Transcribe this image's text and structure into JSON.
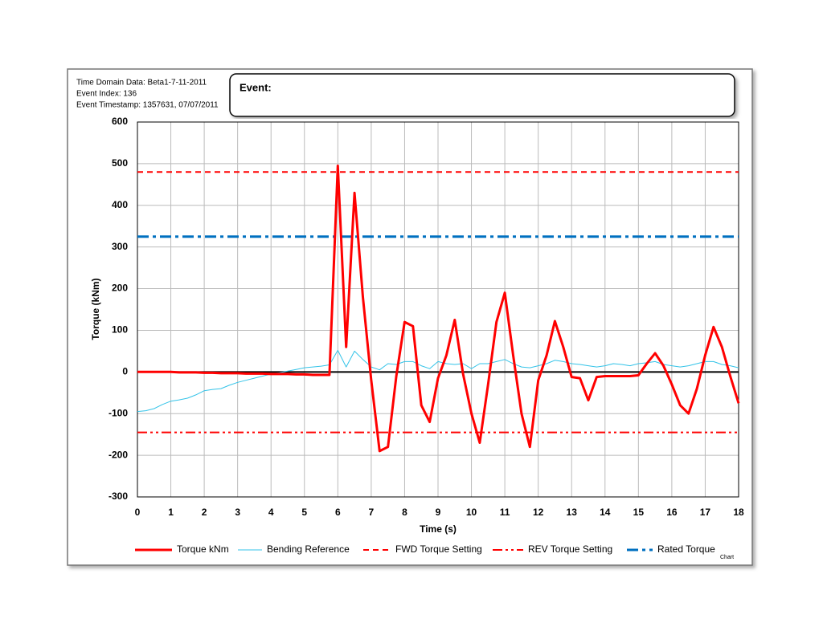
{
  "header": {
    "lines": [
      "Time Domain Data: Beta1-7-11-2011",
      "Event Index: 136",
      "Event Timestamp: 1357631, 07/07/2011"
    ],
    "event_label": "Event:",
    "corner_label": "Chart"
  },
  "chart_data": {
    "type": "line",
    "x_label": "Time (s)",
    "y_label": "Torque (kNm)",
    "x": [
      0,
      0.25,
      0.5,
      0.75,
      1,
      1.25,
      1.5,
      1.75,
      2,
      2.25,
      2.5,
      2.75,
      3,
      3.25,
      3.5,
      3.75,
      4,
      4.25,
      4.5,
      4.75,
      5,
      5.25,
      5.5,
      5.75,
      6,
      6.25,
      6.5,
      6.75,
      7,
      7.25,
      7.5,
      7.75,
      8,
      8.25,
      8.5,
      8.75,
      9,
      9.25,
      9.5,
      9.75,
      10,
      10.25,
      10.5,
      10.75,
      11,
      11.25,
      11.5,
      11.75,
      12,
      12.25,
      12.5,
      12.75,
      13,
      13.25,
      13.5,
      13.75,
      14,
      14.25,
      14.5,
      14.75,
      15,
      15.25,
      15.5,
      15.75,
      16,
      16.25,
      16.5,
      16.75,
      17,
      17.25,
      17.5,
      17.75,
      18
    ],
    "series": [
      {
        "name": "Torque kNm",
        "color": "#ff0000",
        "width": 3,
        "values": [
          0,
          0,
          0,
          0,
          0,
          -1,
          -1,
          -1,
          -2,
          -2,
          -3,
          -3,
          -3,
          -4,
          -4,
          -4,
          -5,
          -5,
          -5,
          -6,
          -6,
          -7,
          -7,
          -7,
          495,
          60,
          430,
          180,
          -20,
          -190,
          -180,
          -10,
          120,
          110,
          -80,
          -120,
          -15,
          40,
          125,
          -5,
          -100,
          -170,
          -30,
          120,
          190,
          40,
          -100,
          -180,
          -20,
          40,
          122,
          60,
          -12,
          -15,
          -68,
          -12,
          -10,
          -10,
          -10,
          -10,
          -8,
          20,
          45,
          15,
          -30,
          -80,
          -100,
          -40,
          40,
          108,
          60,
          -10,
          -75
        ]
      },
      {
        "name": "Bending Reference",
        "color": "#33c3e8",
        "width": 1,
        "values": [
          -95,
          -93,
          -88,
          -78,
          -70,
          -67,
          -63,
          -55,
          -45,
          -42,
          -40,
          -32,
          -25,
          -20,
          -15,
          -10,
          -5,
          -2,
          2,
          6,
          10,
          12,
          14,
          17,
          52,
          12,
          50,
          30,
          12,
          5,
          20,
          18,
          25,
          25,
          15,
          8,
          25,
          20,
          18,
          20,
          8,
          20,
          20,
          25,
          30,
          20,
          12,
          10,
          15,
          20,
          28,
          25,
          20,
          18,
          15,
          12,
          15,
          20,
          18,
          15,
          20,
          22,
          25,
          18,
          15,
          12,
          15,
          20,
          25,
          25,
          18,
          15,
          10
        ]
      }
    ],
    "reference_lines": [
      {
        "name": "FWD Torque Setting",
        "color": "#ff0000",
        "value": 480,
        "dash": "7,5",
        "width": 2
      },
      {
        "name": "REV Torque Setting",
        "color": "#ff0000",
        "value": -145,
        "dash": "12,4,3,4,3,4",
        "width": 2
      },
      {
        "name": "Rated Torque",
        "color": "#0070c0",
        "value": 325,
        "dash": "14,5,4,5",
        "width": 3
      }
    ],
    "xlim": [
      0,
      18
    ],
    "xticks": [
      0,
      1,
      2,
      3,
      4,
      5,
      6,
      7,
      8,
      9,
      10,
      11,
      12,
      13,
      14,
      15,
      16,
      17,
      18
    ],
    "ylim": [
      -300,
      600
    ],
    "yticks": [
      -300,
      -200,
      -100,
      0,
      100,
      200,
      300,
      400,
      500,
      600
    ],
    "grid": true
  }
}
